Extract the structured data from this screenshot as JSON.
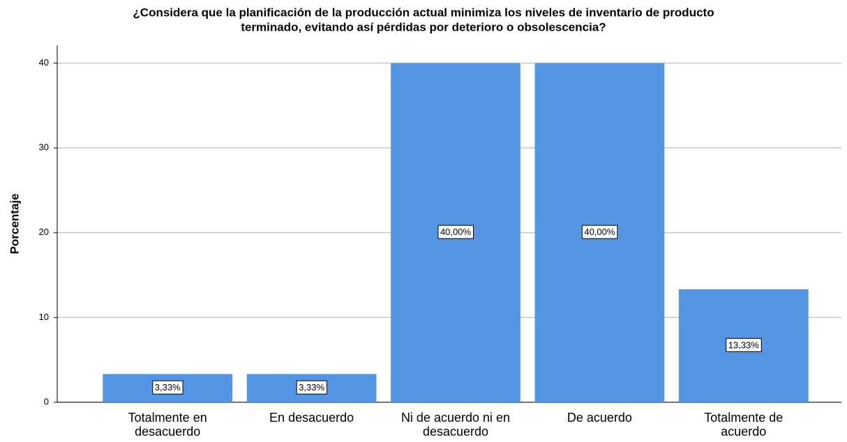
{
  "chart_data": {
    "type": "bar",
    "title": [
      "¿Considera que la planificación de la producción actual minimiza los niveles de inventario de producto",
      "terminado, evitando así pérdidas por deterioro o obsolescencia?"
    ],
    "y_label": "Porcentaje",
    "categories": [
      "Totalmente en desacuerdo",
      "En desacuerdo",
      "Ni de acuerdo ni en desacuerdo",
      "De acuerdo",
      "Totalmente de acuerdo"
    ],
    "values": [
      3.33,
      3.33,
      40,
      40,
      13.33
    ],
    "value_labels": [
      "3,33%",
      "3,33%",
      "40,00%",
      "40,00%",
      "13,33%"
    ],
    "color": "#5596e4",
    "ylim": [
      0,
      42.1
    ],
    "yticks": [
      0,
      10,
      20,
      30,
      40
    ],
    "grid": true
  }
}
